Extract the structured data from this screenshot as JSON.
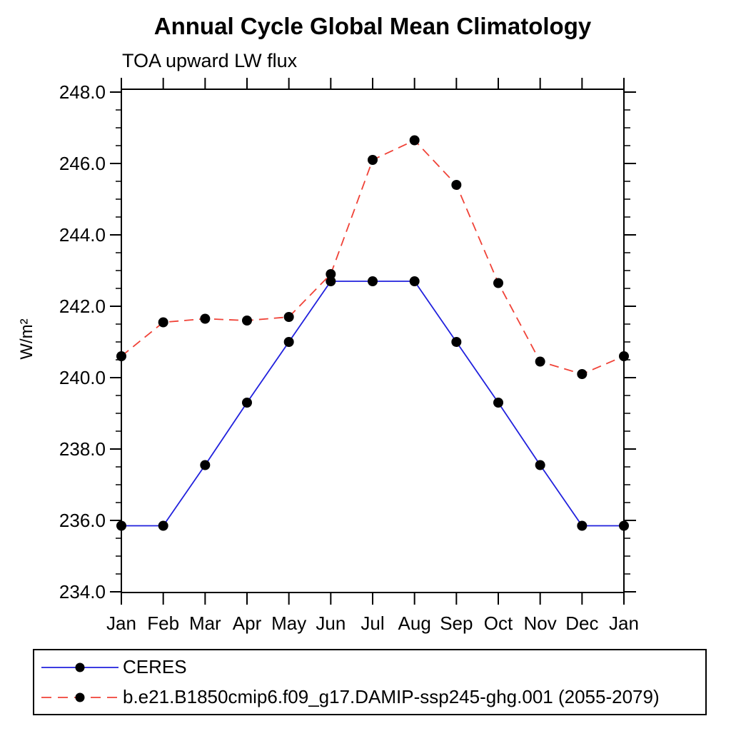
{
  "background_color": "#ffffff",
  "text_color": "#000000",
  "axis_color": "#000000",
  "marker_color": "#000000",
  "chart_data": {
    "type": "line",
    "title": "Annual Cycle Global Mean Climatology",
    "subtitle": "TOA upward LW flux",
    "ylabel": "W/m²",
    "xlabel": "",
    "categories": [
      "Jan",
      "Feb",
      "Mar",
      "Apr",
      "May",
      "Jun",
      "Jul",
      "Aug",
      "Sep",
      "Oct",
      "Nov",
      "Dec",
      "Jan"
    ],
    "ylim": [
      234.0,
      248.0
    ],
    "ytick_interval": 2.0,
    "yminor_interval": 0.5,
    "ytick_labels": [
      "234.0",
      "236.0",
      "238.0",
      "240.0",
      "242.0",
      "244.0",
      "246.0",
      "248.0"
    ],
    "grid": false,
    "legend_position": "bottom-left-box",
    "marker": {
      "shape": "circle",
      "color": "#000000"
    },
    "series": [
      {
        "name": "CERES",
        "color": "#2020dd",
        "line_style": "solid",
        "values": [
          235.85,
          235.85,
          237.55,
          239.3,
          241.0,
          242.7,
          242.7,
          242.7,
          241.0,
          239.3,
          237.55,
          235.85,
          235.85
        ]
      },
      {
        "name": "b.e21.B1850cmip6.f09_g17.DAMIP-ssp245-ghg.001 (2055-2079)",
        "color": "#f04237",
        "line_style": "dashed",
        "values": [
          240.6,
          241.55,
          241.65,
          241.6,
          241.7,
          242.9,
          246.1,
          246.65,
          245.4,
          242.65,
          240.45,
          240.1,
          240.6
        ]
      }
    ]
  }
}
